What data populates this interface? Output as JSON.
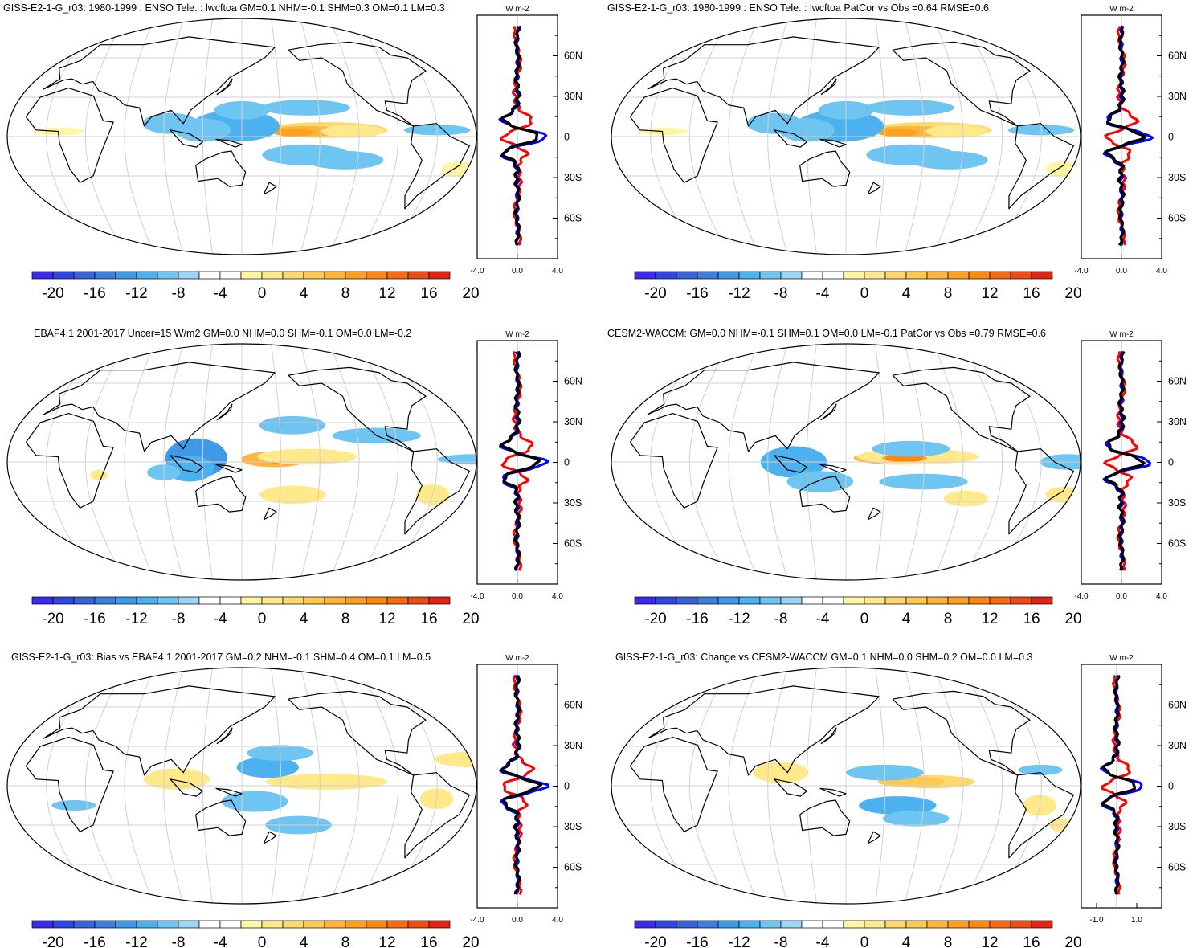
{
  "colors": {
    "levels": [
      "#3b2bee",
      "#3245e5",
      "#3a62db",
      "#3c7fe0",
      "#3e9ae6",
      "#4cb2ef",
      "#6fc5f2",
      "#9dd6f4",
      "#ffffff",
      "#ffffff",
      "#fff6a4",
      "#ffe98b",
      "#ffd96d",
      "#ffc84f",
      "#ffb537",
      "#ffa11e",
      "#ff870f",
      "#f86a0e",
      "#f04a15",
      "#e32314"
    ],
    "series_blue": "#0000ff",
    "series_red": "#ff0000",
    "series_black": "#000000"
  },
  "colorbar_labels": [
    "-20",
    "-16",
    "-12",
    "-8",
    "-4",
    "0",
    "4",
    "8",
    "12",
    "16",
    "20"
  ],
  "lat_labels": [
    "60N",
    "30N",
    "0",
    "30S",
    "60S"
  ],
  "profile_unit": "W m-2",
  "panels": [
    {
      "title": "GISS-E2-1-G_r03: 1980-1999 : ENSO Tele. : lwcftoa GM=0.1 NHM=-0.1 SHM=0.3 OM=0.1 LM=0.3",
      "x_ticks": [
        "-4.0",
        "0.0",
        "4.0"
      ],
      "map": "model"
    },
    {
      "title": "GISS-E2-1-G_r03: 1980-1999 : ENSO Tele. : lwcftoa PatCor vs Obs =0.64 RMSE=0.6",
      "x_ticks": [
        "-4.0",
        "0.0",
        "4.0"
      ],
      "map": "model"
    },
    {
      "title": "EBAF4.1 2001-2017 Uncer=15 W/m2 GM=0.0 NHM=0.0 SHM=-0.1 OM=0.0 LM=-0.2",
      "x_ticks": [
        "-4.0",
        "0.0",
        "4.0"
      ],
      "map": "obs"
    },
    {
      "title": "CESM2-WACCM: GM=0.0 NHM=-0.1 SHM=0.1 OM=0.0 LM=-0.1 PatCor vs Obs =0.79 RMSE=0.6",
      "x_ticks": [
        "-4.0",
        "0.0",
        "4.0"
      ],
      "map": "cesm"
    },
    {
      "title": "GISS-E2-1-G_r03: Bias vs EBAF4.1 2001-2017 GM=0.2 NHM=-0.1 SHM=0.4 OM=0.1 LM=0.5",
      "x_ticks": [
        "-4.0",
        "0.0",
        "4.0"
      ],
      "map": "bias"
    },
    {
      "title": "GISS-E2-1-G_r03: Change vs CESM2-WACCM GM=0.1 NHM=0.0 SHM=0.2 OM=0.0 LM=0.3",
      "x_ticks": [
        "-1.0",
        "1.0"
      ],
      "map": "change"
    }
  ]
}
